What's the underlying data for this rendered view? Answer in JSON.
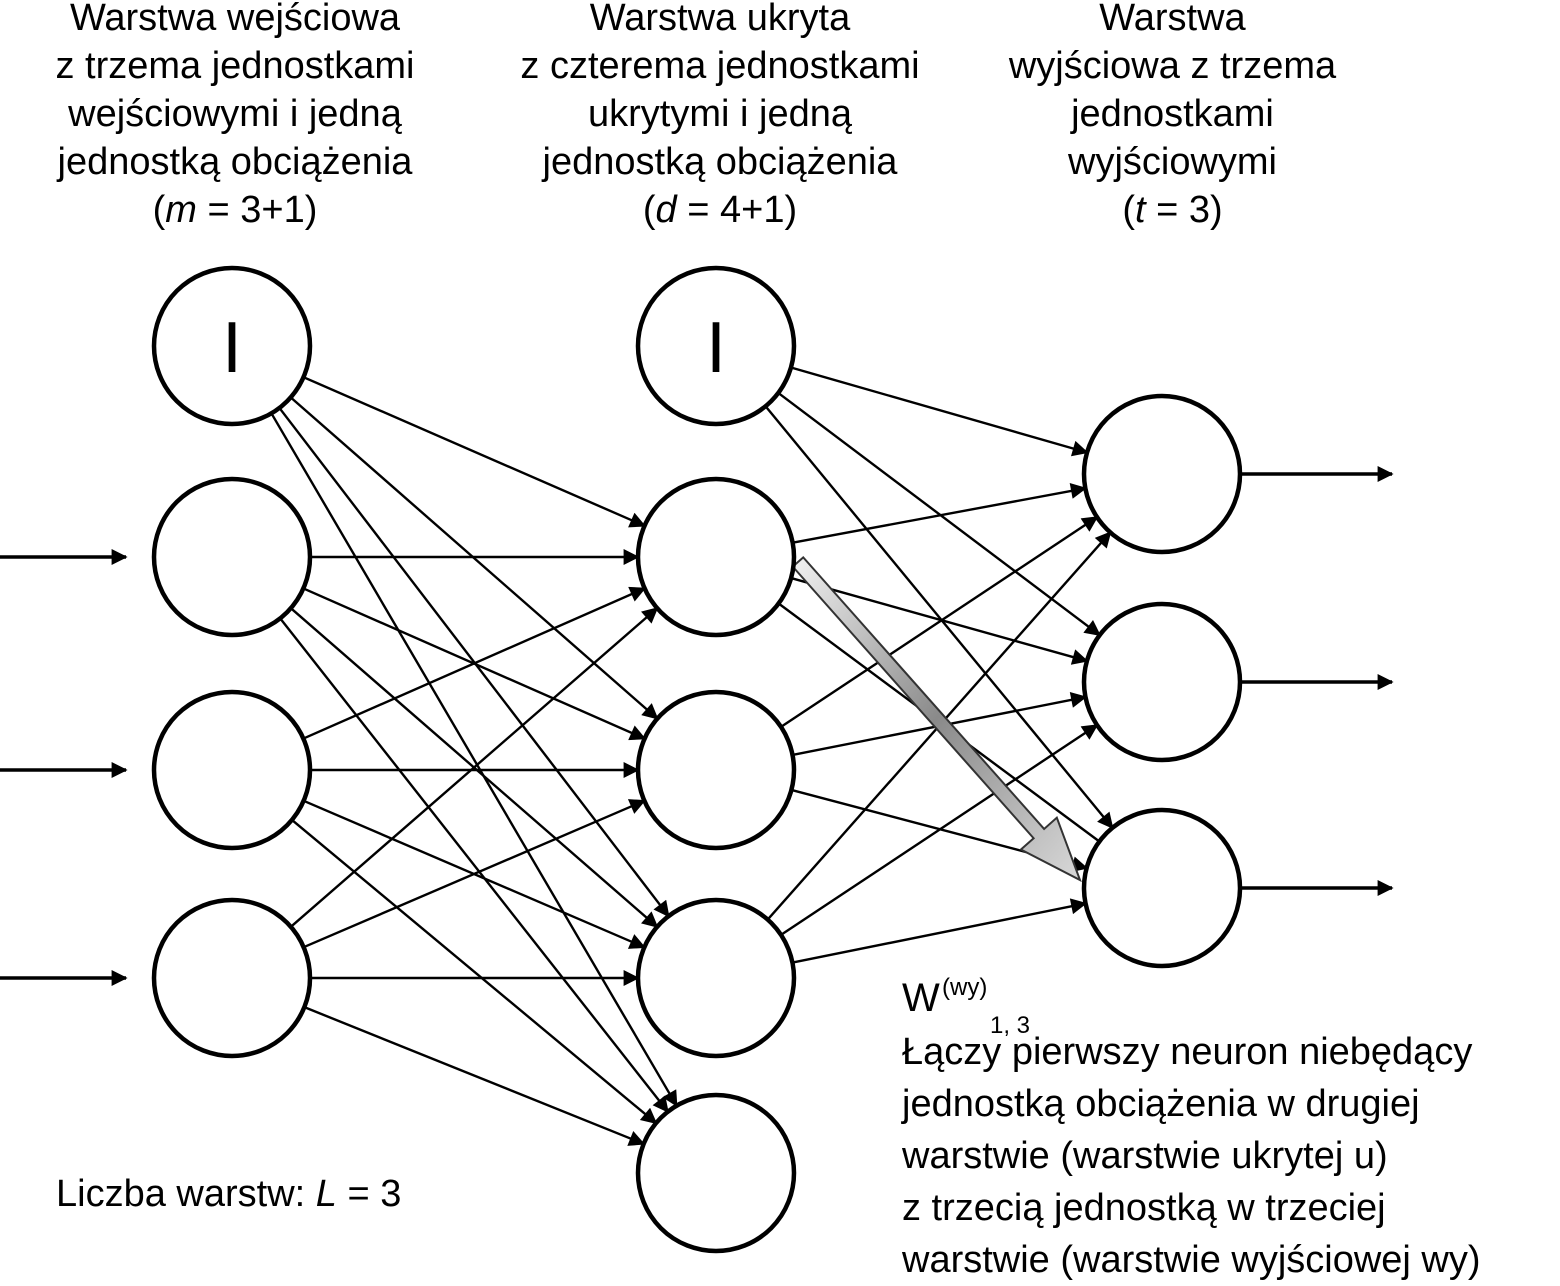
{
  "layers": {
    "input": {
      "title": "Warstwa wejściowa\nz trzema jednostkami\nwejściowymi i jedną\njednostką obciążenia",
      "formula_prefix": "(",
      "formula_var": "m",
      "formula_rest": " = 3+1)",
      "bias_symbol": "I"
    },
    "hidden": {
      "title": "Warstwa ukryta\nz czterema jednostkami\nukrytymi i jedną\njednostką obciążenia",
      "formula_prefix": "(",
      "formula_var": "d",
      "formula_rest": " = 4+1)",
      "bias_symbol": "I"
    },
    "output": {
      "title": "Warstwa\nwyjściowa z trzema\njednostkami\nwyjściowymi",
      "formula_prefix": "(",
      "formula_var": "t",
      "formula_rest": " = 3)"
    }
  },
  "layer_count": {
    "label": "Liczba warstw: ",
    "var": "L",
    "rest": " = 3"
  },
  "weight_annotation": {
    "symbol": "W",
    "superscript": "(wy)",
    "subscript": "1, 3",
    "description": "Łączy pierwszy neuron niebędący jednostką obciążenia w drugiej warstwie (warstwie ukrytej u) z trzecią jednostką w trzeciej warstwie (warstwie wyjściowej wy)"
  },
  "colors": {
    "stroke": "#000000",
    "highlight_arrow": "#9a9a9a"
  }
}
